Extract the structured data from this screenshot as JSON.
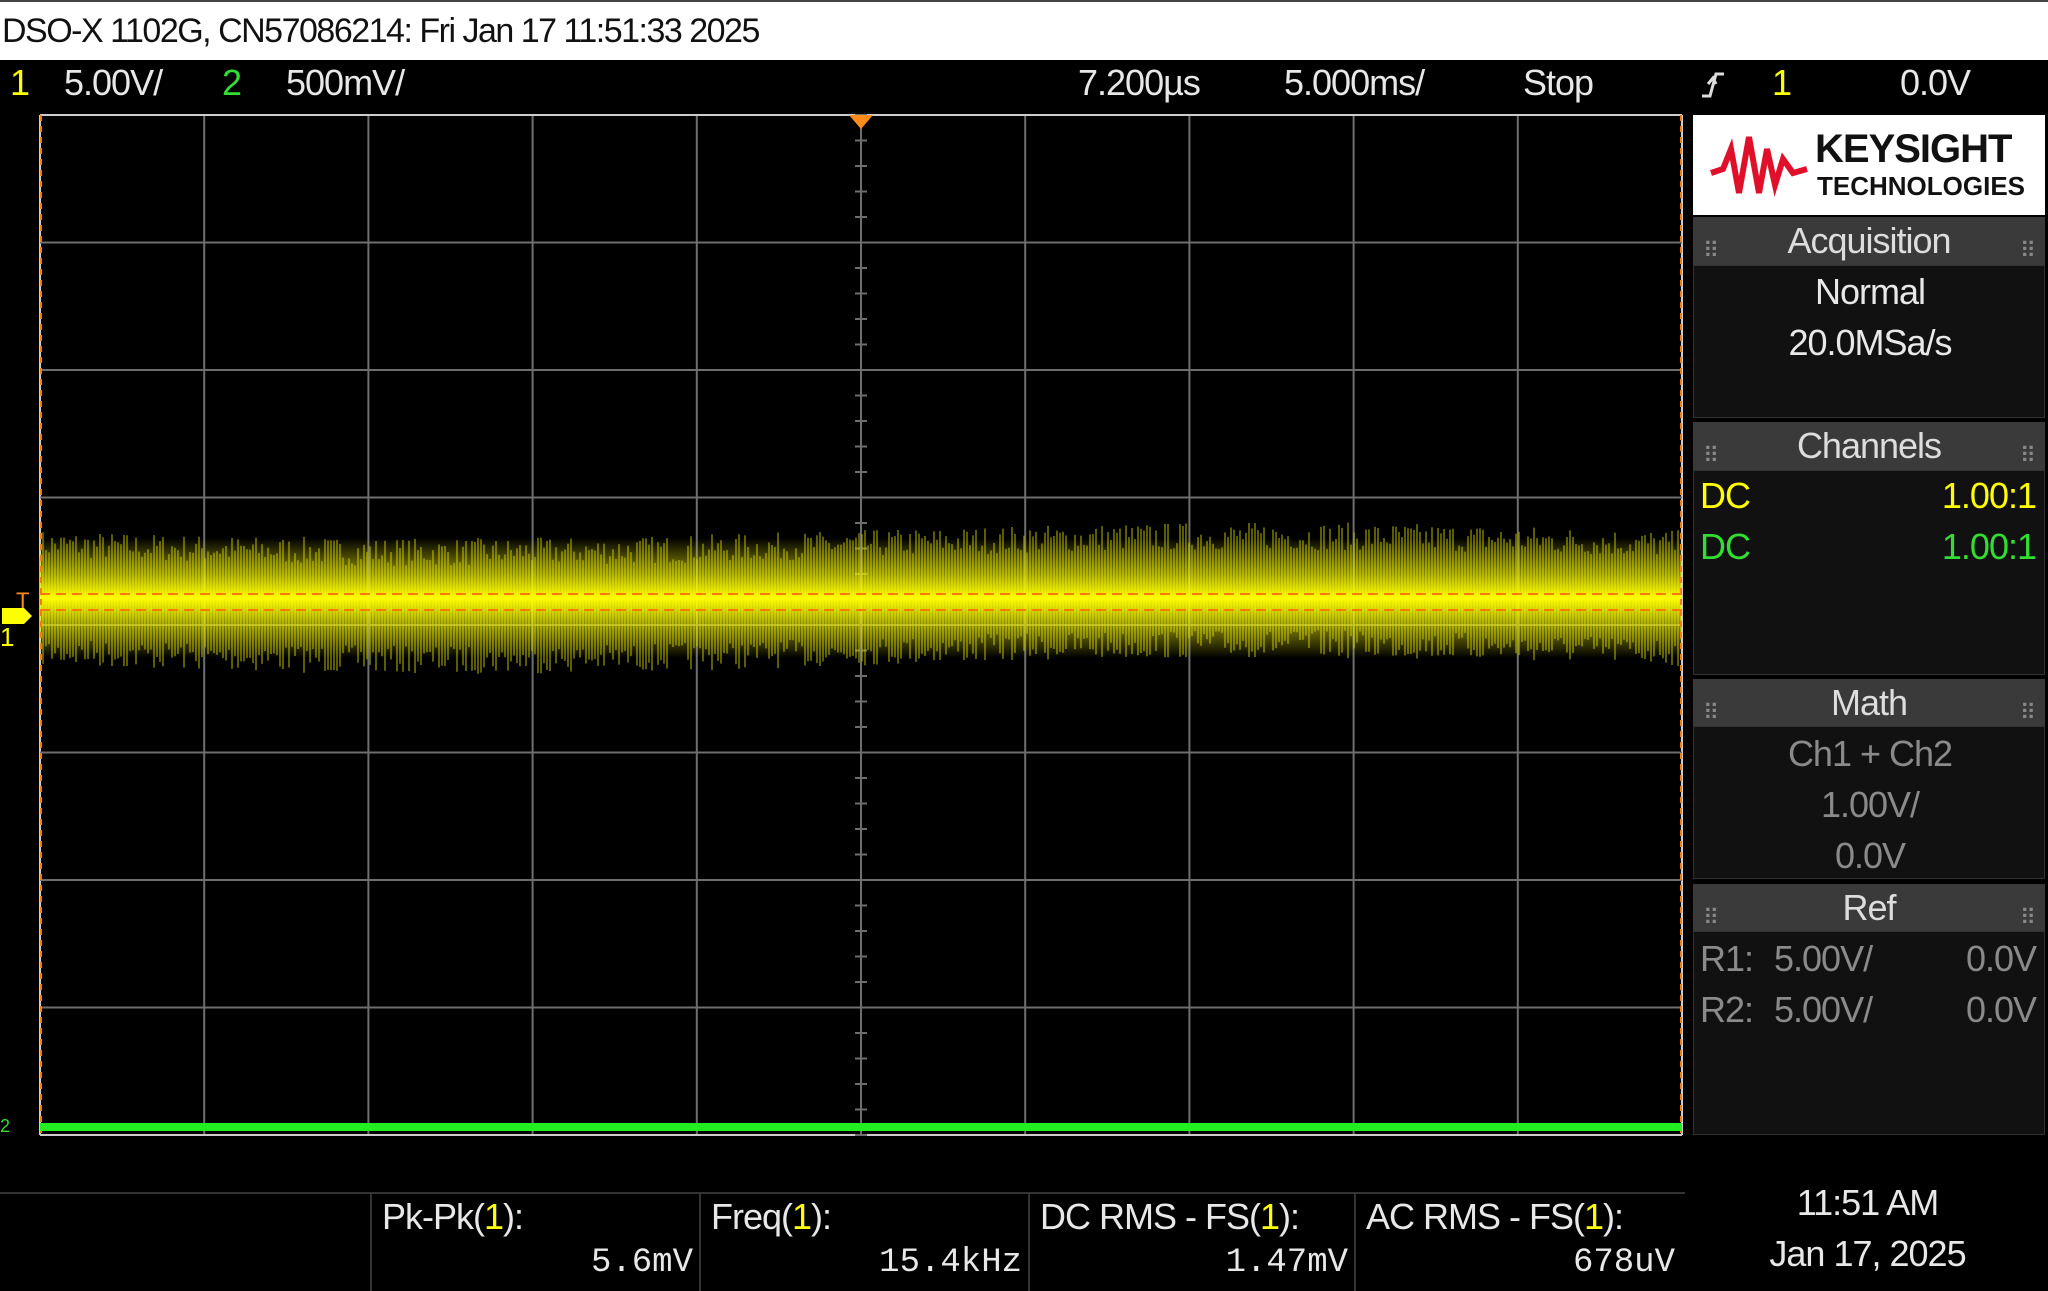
{
  "title_bar": "DSO-X 1102G, CN57086214: Fri Jan 17 11:51:33 2025",
  "status_bar": {
    "ch1_number": "1",
    "ch1_scale": "5.00V/",
    "ch2_number": "2",
    "ch2_scale": "500mV/",
    "delay": "7.200µs",
    "timebase": "5.000ms/",
    "run_state": "Stop",
    "trigger_source": "1",
    "trigger_level": "0.0V"
  },
  "graticule_markers": {
    "trigger": "T",
    "ch1": "1",
    "ch2": "2"
  },
  "logo": {
    "brand": "KEYSIGHT",
    "subtitle": "TECHNOLOGIES"
  },
  "panels": {
    "acquisition": {
      "title": "Acquisition",
      "mode": "Normal",
      "rate": "20.0MSa/s"
    },
    "channels": {
      "title": "Channels",
      "rows": [
        [
          "DC",
          "1.00:1"
        ],
        [
          "DC",
          "1.00:1"
        ]
      ]
    },
    "math": {
      "title": "Math",
      "function": "Ch1 + Ch2",
      "scale": "1.00V/",
      "offset": "0.0V"
    },
    "ref": {
      "title": "Ref",
      "rows": [
        [
          "R1:",
          "5.00V/",
          "0.0V"
        ],
        [
          "R2:",
          "5.00V/",
          "0.0V"
        ]
      ]
    }
  },
  "measurements": [
    {
      "label": [
        "Pk-Pk(",
        "1",
        "):"
      ],
      "value": "5.6mV"
    },
    {
      "label": [
        "Freq(",
        "1",
        "):"
      ],
      "value": "15.4kHz"
    },
    {
      "label": [
        "DC RMS - FS(",
        "1",
        "):"
      ],
      "value": "1.47mV"
    },
    {
      "label": [
        "AC RMS - FS(",
        "1",
        "):"
      ],
      "value": "678uV"
    }
  ],
  "clock": {
    "time": "11:51 AM",
    "date": "Jan 17, 2025"
  }
}
